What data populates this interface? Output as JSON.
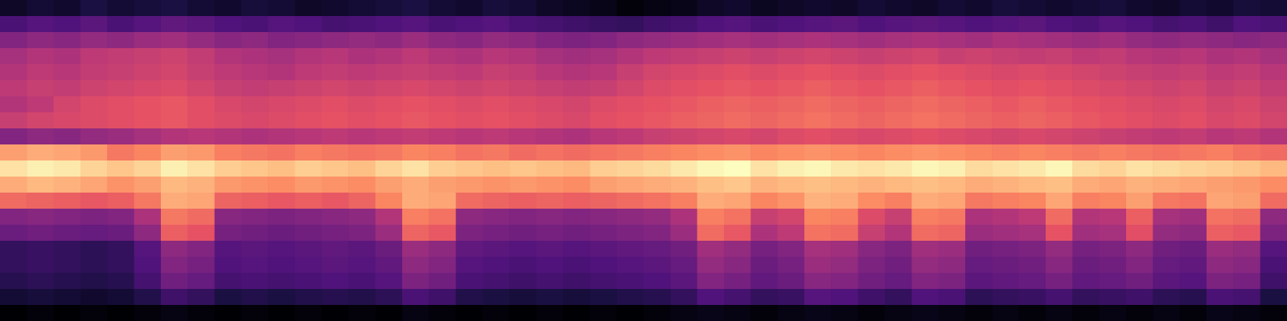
{
  "chart_data": {
    "type": "heatmap",
    "tick_labels": false,
    "cells": [
      [
        -74,
        -72,
        -73,
        -70,
        -72,
        -71,
        -70,
        -72,
        -73,
        -71,
        -72,
        -74,
        -73,
        -72,
        -71,
        -70,
        -72,
        -73,
        -71,
        -72,
        -74,
        -75,
        -76,
        -78,
        -77,
        -76,
        -74,
        -73,
        -75,
        -74,
        -73,
        -74,
        -72,
        -73,
        -74,
        -72,
        -73,
        -71,
        -72,
        -73,
        -72,
        -71,
        -73,
        -74,
        -72,
        -73,
        -71,
        -72
      ],
      [
        -62,
        -60,
        -61,
        -59,
        -62,
        -60,
        -58,
        -59,
        -61,
        -62,
        -60,
        -61,
        -63,
        -62,
        -61,
        -60,
        -62,
        -61,
        -60,
        -62,
        -63,
        -64,
        -65,
        -66,
        -64,
        -63,
        -61,
        -60,
        -62,
        -61,
        -60,
        -59,
        -61,
        -60,
        -59,
        -60,
        -61,
        -60,
        -59,
        -61,
        -62,
        -60,
        -61,
        -63,
        -62,
        -64,
        -61,
        -62
      ],
      [
        -52,
        -50,
        -51,
        -49,
        -50,
        -48,
        -47,
        -49,
        -51,
        -50,
        -52,
        -51,
        -50,
        -49,
        -50,
        -48,
        -50,
        -51,
        -49,
        -50,
        -52,
        -53,
        -52,
        -50,
        -49,
        -48,
        -47,
        -46,
        -47,
        -46,
        -45,
        -46,
        -47,
        -46,
        -45,
        -46,
        -47,
        -45,
        -46,
        -47,
        -48,
        -47,
        -49,
        -50,
        -49,
        -50,
        -51,
        -50
      ],
      [
        -46,
        -44,
        -45,
        -42,
        -41,
        -40,
        -39,
        -41,
        -44,
        -45,
        -46,
        -44,
        -43,
        -45,
        -44,
        -42,
        -44,
        -45,
        -43,
        -44,
        -46,
        -47,
        -46,
        -44,
        -42,
        -41,
        -40,
        -39,
        -40,
        -39,
        -38,
        -39,
        -40,
        -39,
        -38,
        -40,
        -39,
        -40,
        -41,
        -40,
        -42,
        -41,
        -43,
        -44,
        -43,
        -45,
        -44,
        -46
      ],
      [
        -44,
        -42,
        -43,
        -41,
        -40,
        -39,
        -38,
        -40,
        -42,
        -43,
        -44,
        -42,
        -41,
        -42,
        -41,
        -40,
        -41,
        -42,
        -40,
        -41,
        -43,
        -44,
        -43,
        -40,
        -38,
        -37,
        -36,
        -35,
        -36,
        -35,
        -34,
        -35,
        -36,
        -35,
        -34,
        -35,
        -36,
        -37,
        -36,
        -37,
        -38,
        -39,
        -40,
        -41,
        -40,
        -42,
        -41,
        -43
      ],
      [
        -42,
        -40,
        -41,
        -39,
        -38,
        -37,
        -36,
        -38,
        -40,
        -41,
        -40,
        -39,
        -38,
        -39,
        -38,
        -37,
        -38,
        -39,
        -38,
        -39,
        -40,
        -41,
        -40,
        -38,
        -36,
        -35,
        -34,
        -33,
        -34,
        -33,
        -32,
        -33,
        -34,
        -33,
        -32,
        -33,
        -34,
        -35,
        -34,
        -35,
        -36,
        -37,
        -38,
        -39,
        -38,
        -40,
        -39,
        -41
      ],
      [
        -44,
        -42,
        -38,
        -36,
        -35,
        -34,
        -33,
        -35,
        -37,
        -38,
        -37,
        -36,
        -35,
        -36,
        -35,
        -34,
        -35,
        -36,
        -35,
        -36,
        -37,
        -38,
        -36,
        -35,
        -34,
        -33,
        -32,
        -31,
        -32,
        -31,
        -30,
        -31,
        -32,
        -31,
        -30,
        -31,
        -32,
        -33,
        -32,
        -33,
        -34,
        -35,
        -36,
        -37,
        -36,
        -38,
        -37,
        -39
      ],
      [
        -40,
        -38,
        -37,
        -36,
        -35,
        -34,
        -33,
        -35,
        -36,
        -37,
        -36,
        -35,
        -34,
        -35,
        -34,
        -33,
        -34,
        -35,
        -34,
        -35,
        -36,
        -37,
        -35,
        -34,
        -33,
        -32,
        -31,
        -30,
        -31,
        -30,
        -29,
        -30,
        -31,
        -30,
        -29,
        -30,
        -31,
        -32,
        -31,
        -32,
        -33,
        -34,
        -35,
        -36,
        -35,
        -37,
        -36,
        -38
      ],
      [
        -52,
        -50,
        -51,
        -49,
        -48,
        -46,
        -44,
        -43,
        -44,
        -45,
        -44,
        -43,
        -42,
        -43,
        -42,
        -41,
        -42,
        -43,
        -42,
        -43,
        -44,
        -45,
        -43,
        -42,
        -40,
        -39,
        -38,
        -37,
        -38,
        -36,
        -35,
        -36,
        -37,
        -36,
        -35,
        -36,
        -37,
        -38,
        -37,
        -38,
        -39,
        -40,
        -41,
        -42,
        -41,
        -43,
        -42,
        -44
      ],
      [
        -22,
        -20,
        -21,
        -23,
        -28,
        -26,
        -22,
        -23,
        -27,
        -28,
        -29,
        -27,
        -28,
        -29,
        -28,
        -26,
        -27,
        -29,
        -28,
        -30,
        -29,
        -30,
        -29,
        -28,
        -27,
        -26,
        -25,
        -24,
        -26,
        -25,
        -24,
        -25,
        -26,
        -25,
        -24,
        -25,
        -26,
        -27,
        -26,
        -27,
        -28,
        -27,
        -28,
        -29,
        -28,
        -27,
        -29,
        -30
      ],
      [
        -12,
        -10,
        -11,
        -14,
        -16,
        -14,
        -10,
        -12,
        -15,
        -16,
        -17,
        -15,
        -16,
        -17,
        -14,
        -12,
        -15,
        -16,
        -17,
        -16,
        -17,
        -18,
        -15,
        -14,
        -13,
        -11,
        -9,
        -8,
        -12,
        -10,
        -9,
        -11,
        -12,
        -11,
        -9,
        -10,
        -13,
        -12,
        -11,
        -9,
        -13,
        -14,
        -12,
        -13,
        -14,
        -15,
        -16,
        -18
      ],
      [
        -20,
        -18,
        -19,
        -21,
        -24,
        -22,
        -18,
        -19,
        -23,
        -24,
        -25,
        -23,
        -24,
        -25,
        -22,
        -20,
        -22,
        -23,
        -24,
        -23,
        -24,
        -25,
        -22,
        -21,
        -20,
        -19,
        -17,
        -16,
        -19,
        -18,
        -17,
        -18,
        -19,
        -18,
        -17,
        -18,
        -20,
        -19,
        -18,
        -17,
        -20,
        -21,
        -19,
        -20,
        -21,
        -22,
        -23,
        -25
      ],
      [
        -30,
        -31,
        -32,
        -33,
        -32,
        -28,
        -20,
        -21,
        -31,
        -32,
        -33,
        -32,
        -33,
        -31,
        -26,
        -20,
        -21,
        -30,
        -31,
        -32,
        -31,
        -32,
        -31,
        -30,
        -29,
        -27,
        -20,
        -21,
        -26,
        -24,
        -19,
        -20,
        -25,
        -27,
        -20,
        -21,
        -28,
        -27,
        -26,
        -21,
        -27,
        -26,
        -22,
        -28,
        -29,
        -21,
        -22,
        -30
      ],
      [
        -52,
        -51,
        -52,
        -53,
        -52,
        -45,
        -28,
        -30,
        -51,
        -52,
        -53,
        -52,
        -51,
        -50,
        -44,
        -27,
        -29,
        -50,
        -51,
        -52,
        -51,
        -52,
        -51,
        -50,
        -49,
        -45,
        -27,
        -29,
        -40,
        -38,
        -26,
        -27,
        -36,
        -40,
        -27,
        -28,
        -45,
        -44,
        -42,
        -30,
        -44,
        -43,
        -32,
        -46,
        -47,
        -29,
        -30,
        -50
      ],
      [
        -56,
        -55,
        -56,
        -57,
        -56,
        -50,
        -32,
        -34,
        -54,
        -55,
        -56,
        -55,
        -54,
        -53,
        -48,
        -31,
        -33,
        -53,
        -54,
        -55,
        -54,
        -55,
        -54,
        -53,
        -52,
        -48,
        -30,
        -33,
        -45,
        -42,
        -29,
        -30,
        -40,
        -44,
        -30,
        -31,
        -48,
        -47,
        -46,
        -34,
        -47,
        -46,
        -35,
        -49,
        -50,
        -32,
        -33,
        -53
      ],
      [
        -66,
        -65,
        -66,
        -67,
        -66,
        -60,
        -50,
        -52,
        -60,
        -59,
        -60,
        -59,
        -58,
        -59,
        -56,
        -48,
        -50,
        -58,
        -59,
        -60,
        -59,
        -60,
        -59,
        -58,
        -57,
        -55,
        -47,
        -49,
        -54,
        -52,
        -46,
        -47,
        -51,
        -53,
        -47,
        -48,
        -55,
        -54,
        -53,
        -49,
        -54,
        -53,
        -50,
        -55,
        -56,
        -48,
        -49,
        -60
      ],
      [
        -66,
        -65,
        -66,
        -67,
        -66,
        -61,
        -52,
        -54,
        -61,
        -60,
        -61,
        -60,
        -59,
        -60,
        -58,
        -50,
        -52,
        -60,
        -61,
        -62,
        -61,
        -62,
        -61,
        -60,
        -59,
        -57,
        -49,
        -51,
        -56,
        -54,
        -48,
        -49,
        -53,
        -55,
        -49,
        -50,
        -57,
        -56,
        -55,
        -51,
        -56,
        -55,
        -52,
        -57,
        -58,
        -50,
        -51,
        -62
      ],
      [
        -68,
        -67,
        -68,
        -69,
        -68,
        -63,
        -55,
        -57,
        -63,
        -62,
        -63,
        -62,
        -61,
        -62,
        -60,
        -53,
        -55,
        -62,
        -63,
        -64,
        -63,
        -64,
        -63,
        -62,
        -61,
        -59,
        -52,
        -54,
        -58,
        -56,
        -51,
        -52,
        -55,
        -57,
        -52,
        -53,
        -59,
        -58,
        -57,
        -54,
        -58,
        -57,
        -55,
        -59,
        -60,
        -53,
        -54,
        -64
      ],
      [
        -72,
        -71,
        -72,
        -73,
        -72,
        -69,
        -64,
        -66,
        -70,
        -69,
        -70,
        -69,
        -68,
        -69,
        -67,
        -62,
        -64,
        -69,
        -70,
        -71,
        -70,
        -71,
        -70,
        -69,
        -68,
        -66,
        -61,
        -63,
        -66,
        -65,
        -60,
        -61,
        -64,
        -66,
        -61,
        -62,
        -67,
        -66,
        -65,
        -63,
        -66,
        -65,
        -64,
        -67,
        -68,
        -62,
        -63,
        -70
      ],
      [
        -79,
        -78,
        -79,
        -78,
        -79,
        -78,
        -77,
        -78,
        -79,
        -78,
        -79,
        -78,
        -79,
        -78,
        -79,
        -77,
        -78,
        -79,
        -78,
        -79,
        -78,
        -79,
        -78,
        -79,
        -78,
        -77,
        -76,
        -77,
        -78,
        -77,
        -76,
        -77,
        -78,
        -77,
        -76,
        -77,
        -78,
        -77,
        -78,
        -77,
        -78,
        -77,
        -78,
        -77,
        -78,
        -76,
        -77,
        -78
      ]
    ]
  }
}
